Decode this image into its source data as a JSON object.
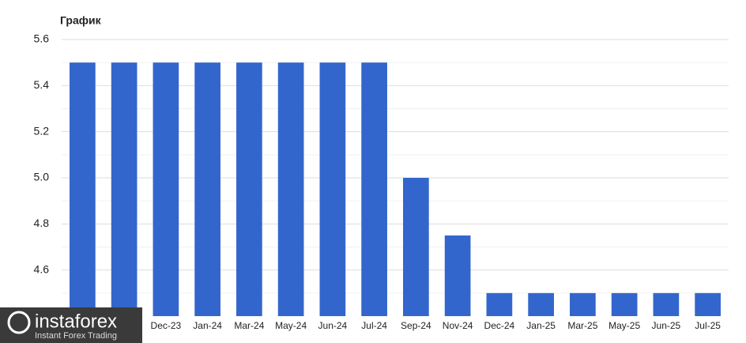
{
  "chart_data": {
    "type": "bar",
    "title": "График",
    "categories": [
      null,
      null,
      "Dec-23",
      "Jan-24",
      "Mar-24",
      "May-24",
      "Jun-24",
      "Jul-24",
      "Sep-24",
      "Nov-24",
      "Dec-24",
      "Jan-25",
      "Mar-25",
      "May-25",
      "Jun-25",
      "Jul-25"
    ],
    "values": [
      5.5,
      5.5,
      5.5,
      5.5,
      5.5,
      5.5,
      5.5,
      5.5,
      5.0,
      4.75,
      4.5,
      4.5,
      4.5,
      4.5,
      4.5,
      4.5
    ],
    "color": "#3366cc",
    "ylim": [
      4.4,
      5.6
    ],
    "yticks": [
      4.6,
      4.8,
      {
        "value": 5,
        "label": "5.0"
      },
      5.2,
      5.4,
      5.6
    ],
    "minor_yticks": [
      4.5,
      4.7,
      4.9,
      5.1,
      5.3,
      5.5
    ],
    "grid": true
  },
  "logo": {
    "name": "instaforex",
    "tagline": "Instant Forex Trading"
  }
}
